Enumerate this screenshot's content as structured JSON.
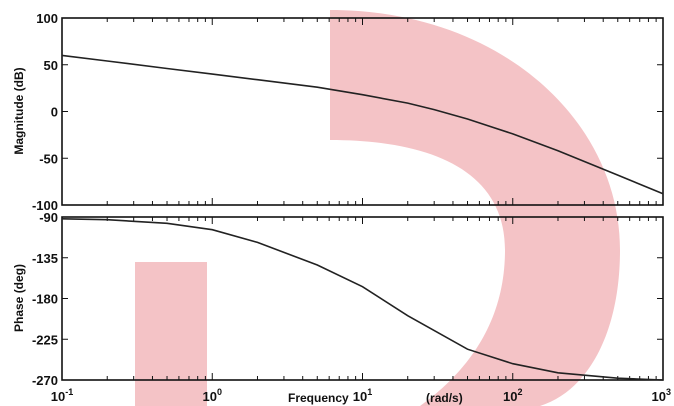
{
  "watermark_color": "#f4c3c6",
  "curve_color": "#222222",
  "x_axis": {
    "label": "Frequency",
    "unit_label": "(rad/s)",
    "scale": "log",
    "range": [
      0.1,
      1000
    ],
    "ticks": [
      0.1,
      1,
      10,
      100,
      1000
    ],
    "tick_labels": [
      {
        "base": "10",
        "exp": "-1"
      },
      {
        "base": "10",
        "exp": "0"
      },
      {
        "base": "10",
        "exp": "1"
      },
      {
        "base": "10",
        "exp": "2"
      },
      {
        "base": "10",
        "exp": "3"
      }
    ]
  },
  "chart_data": [
    {
      "type": "line",
      "ylabel": "Magnitude (dB)",
      "xscale": "log",
      "xlim": [
        0.1,
        1000
      ],
      "ylim": [
        -100,
        100
      ],
      "yticks": [
        100,
        50,
        0,
        -50,
        -100
      ],
      "ytick_labels": [
        "100",
        "50",
        "0",
        "-50",
        "-100"
      ],
      "grid": false,
      "series": [
        {
          "x": [
            0.1,
            0.2,
            0.5,
            1,
            2,
            5,
            10,
            20,
            30,
            50,
            100,
            200,
            500,
            1000
          ],
          "y": [
            60,
            54,
            46,
            40,
            34,
            26,
            18,
            9,
            2,
            -8,
            -24,
            -42,
            -68,
            -88
          ]
        }
      ]
    },
    {
      "type": "line",
      "ylabel": "Phase (deg)",
      "xscale": "log",
      "xlim": [
        0.1,
        1000
      ],
      "ylim": [
        -270,
        -90
      ],
      "yticks": [
        -90,
        -135,
        -180,
        -225,
        -270
      ],
      "ytick_labels": [
        "-90",
        "-135",
        "-180",
        "-225",
        "-270"
      ],
      "grid": false,
      "series": [
        {
          "x": [
            0.1,
            0.2,
            0.5,
            1,
            2,
            5,
            10,
            20,
            50,
            100,
            200,
            500,
            1000
          ],
          "y": [
            -92,
            -93,
            -97,
            -104,
            -118,
            -143,
            -167,
            -199,
            -236,
            -252,
            -262,
            -268,
            -270
          ]
        }
      ]
    }
  ]
}
